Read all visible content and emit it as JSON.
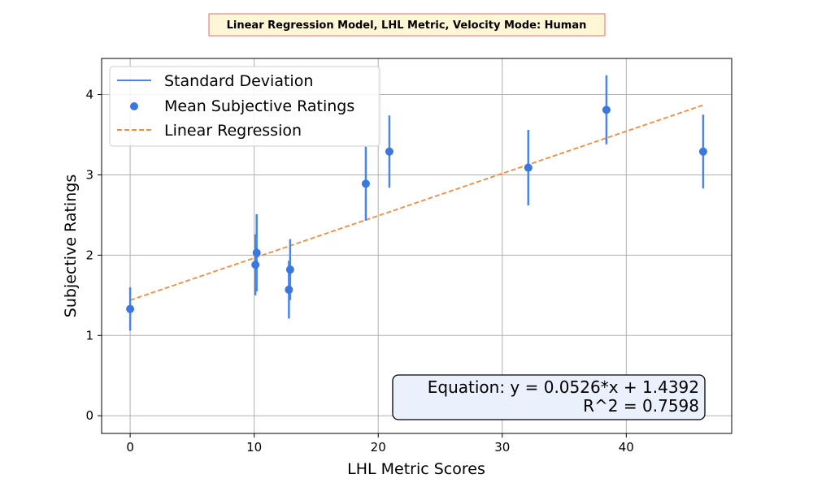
{
  "chart_data": {
    "type": "scatter",
    "title": "Linear Regression Model, LHL Metric, Velocity Mode: Human",
    "xlabel": "LHL Metric Scores",
    "ylabel": "Subjective Ratings",
    "xlim": [
      -2.3,
      48.5
    ],
    "ylim": [
      -0.22,
      4.45
    ],
    "xticks": [
      0,
      10,
      20,
      30,
      40
    ],
    "yticks": [
      0,
      1,
      2,
      3,
      4
    ],
    "grid": true,
    "legend_position": "top-left",
    "legend": {
      "std": "Standard Deviation",
      "mean": "Mean Subjective Ratings",
      "regression": "Linear Regression"
    },
    "colors": {
      "points": "#3a78e0",
      "errorbars": "#4a86e8",
      "regression": "#f58a3c",
      "title_bg": "#fff6d5",
      "title_border": "#f08080",
      "annotation_bg": "#eaf0fc"
    },
    "points": [
      {
        "x": 0.0,
        "y": 1.33,
        "std": 0.27
      },
      {
        "x": 10.1,
        "y": 1.88,
        "std": 0.38
      },
      {
        "x": 10.2,
        "y": 2.03,
        "std": 0.48
      },
      {
        "x": 12.8,
        "y": 1.57,
        "std": 0.36
      },
      {
        "x": 12.9,
        "y": 1.82,
        "std": 0.38
      },
      {
        "x": 19.0,
        "y": 2.89,
        "std": 0.46
      },
      {
        "x": 20.9,
        "y": 3.29,
        "std": 0.45
      },
      {
        "x": 32.1,
        "y": 3.09,
        "std": 0.47
      },
      {
        "x": 38.4,
        "y": 3.81,
        "std": 0.43
      },
      {
        "x": 46.2,
        "y": 3.29,
        "std": 0.46
      }
    ],
    "regression": {
      "slope": 0.0526,
      "intercept": 1.4392,
      "x_range": [
        0,
        46.2
      ]
    },
    "annotation": {
      "equation": "Equation: y = 0.0526*x + 1.4392",
      "r2": "R^2 = 0.7598"
    }
  }
}
